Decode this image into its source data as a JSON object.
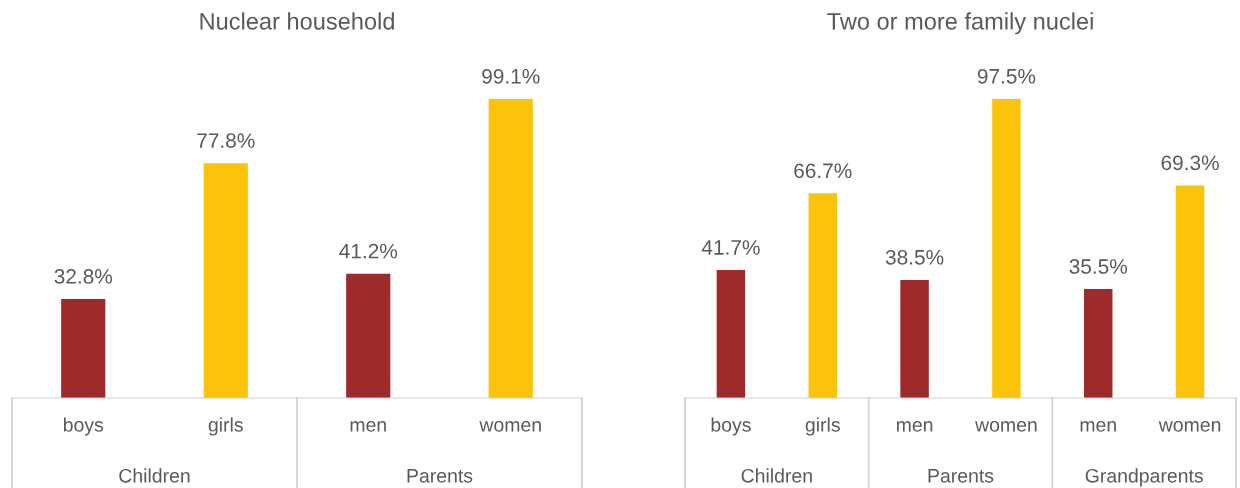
{
  "chart_data": [
    {
      "type": "bar",
      "title": "Nuclear household",
      "categories": [
        "boys",
        "girls",
        "men",
        "women"
      ],
      "values": [
        32.8,
        77.8,
        41.2,
        99.1
      ],
      "value_labels": [
        "32.8%",
        "77.8%",
        "41.2%",
        "99.1%"
      ],
      "colors": [
        "#9e2a2b",
        "#fcc30b",
        "#9e2a2b",
        "#fcc30b"
      ],
      "annotations": [
        "Children",
        "Parents"
      ],
      "grid": false,
      "legend": false
    },
    {
      "type": "bar",
      "title": "Two or more family nuclei",
      "categories": [
        "boys",
        "girls",
        "men",
        "women",
        "men",
        "women"
      ],
      "values": [
        41.7,
        66.7,
        38.5,
        97.5,
        35.5,
        69.3
      ],
      "value_labels": [
        "41.7%",
        "66.7%",
        "38.5%",
        "97.5%",
        "35.5%",
        "69.3%"
      ],
      "colors": [
        "#9e2a2b",
        "#fcc30b",
        "#9e2a2b",
        "#fcc30b",
        "#9e2a2b",
        "#fcc30b"
      ],
      "annotations": [
        "Children",
        "Parents",
        "Grandparents"
      ],
      "grid": false,
      "legend": false
    }
  ]
}
